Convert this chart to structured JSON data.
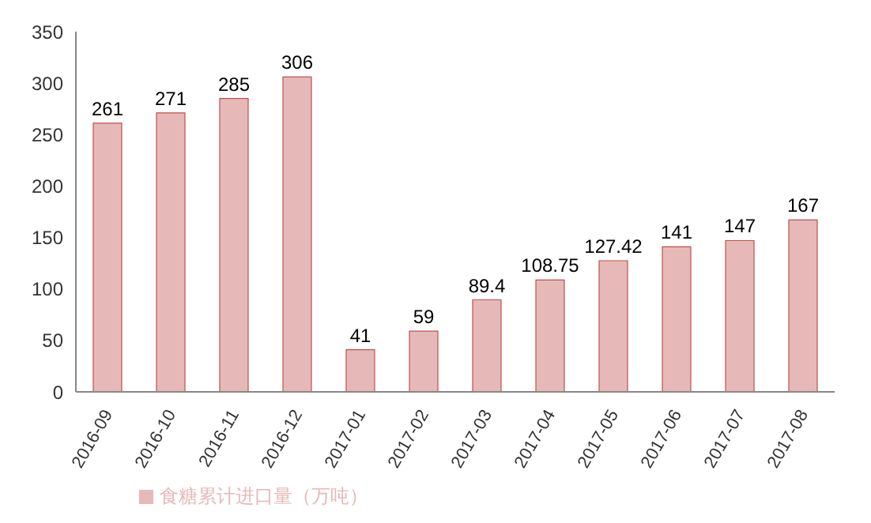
{
  "chart_data": {
    "type": "bar",
    "categories": [
      "2016-09",
      "2016-10",
      "2016-11",
      "2016-12",
      "2017-01",
      "2017-02",
      "2017-03",
      "2017-04",
      "2017-05",
      "2017-06",
      "2017-07",
      "2017-08"
    ],
    "series": [
      {
        "name": "食糖累计进口量（万吨）",
        "color": "#e6b9b8",
        "values": [
          261,
          271,
          285,
          306,
          41,
          59,
          89.4,
          108.75,
          127.42,
          141,
          147,
          167
        ]
      }
    ],
    "ylim": [
      0,
      350
    ],
    "yticks": [
      0,
      50,
      100,
      150,
      200,
      250,
      300,
      350
    ],
    "data_labels": true,
    "legend": "bottom left"
  }
}
